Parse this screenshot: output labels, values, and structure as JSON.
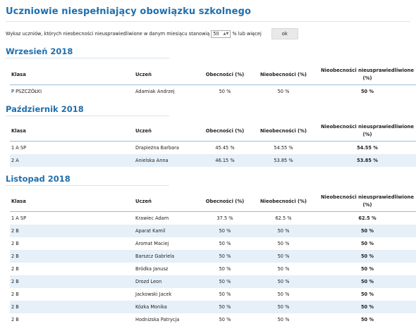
{
  "page": {
    "title": "Uczniowie niespełniający obowiązku szkolnego"
  },
  "filter": {
    "label_before": "Wykaz uczniów, których nieobecności nieusprawiedliwione w danym miesiącu stanowią",
    "value": "50",
    "label_after": "% lub więcej",
    "ok_label": "ok"
  },
  "columns": {
    "klasa": "Klasa",
    "uczen": "Uczeń",
    "obecnosci": "Obecności (%)",
    "nieobecnosci": "Nieobecności (%)",
    "nieusprawiedliwione": "Nieobecności nieusprawiedliwione (%)"
  },
  "sections": [
    {
      "month": "Wrzesień 2018",
      "rows": [
        {
          "klasa": "P PSZCZÓŁKI",
          "uczen": "Adamiak Andrzej",
          "obecnosci": "50 %",
          "nieobecnosci": "50 %",
          "nieusprawiedliwione": "50 %"
        }
      ]
    },
    {
      "month": "Październik 2018",
      "rows": [
        {
          "klasa": "1 A SP",
          "uczen": "Drapieżna Barbara",
          "obecnosci": "45.45 %",
          "nieobecnosci": "54.55 %",
          "nieusprawiedliwione": "54.55 %"
        },
        {
          "klasa": "2 A",
          "uczen": "Anielska Anna",
          "obecnosci": "46.15 %",
          "nieobecnosci": "53.85 %",
          "nieusprawiedliwione": "53.85 %"
        }
      ]
    },
    {
      "month": "Listopad 2018",
      "rows": [
        {
          "klasa": "1 A SP",
          "uczen": "Krawiec Adam",
          "obecnosci": "37.5 %",
          "nieobecnosci": "62.5 %",
          "nieusprawiedliwione": "62.5 %"
        },
        {
          "klasa": "2 B",
          "uczen": "Aparat Kamil",
          "obecnosci": "50 %",
          "nieobecnosci": "50 %",
          "nieusprawiedliwione": "50 %"
        },
        {
          "klasa": "2 B",
          "uczen": "Aromat Maciej",
          "obecnosci": "50 %",
          "nieobecnosci": "50 %",
          "nieusprawiedliwione": "50 %"
        },
        {
          "klasa": "2 B",
          "uczen": "Barszcz Gabriela",
          "obecnosci": "50 %",
          "nieobecnosci": "50 %",
          "nieusprawiedliwione": "50 %"
        },
        {
          "klasa": "2 B",
          "uczen": "Bródka Janusz",
          "obecnosci": "50 %",
          "nieobecnosci": "50 %",
          "nieusprawiedliwione": "50 %"
        },
        {
          "klasa": "2 B",
          "uczen": "Drozd Leon",
          "obecnosci": "50 %",
          "nieobecnosci": "50 %",
          "nieusprawiedliwione": "50 %"
        },
        {
          "klasa": "2 B",
          "uczen": "Jackowski Jacek",
          "obecnosci": "50 %",
          "nieobecnosci": "50 %",
          "nieusprawiedliwione": "50 %"
        },
        {
          "klasa": "2 B",
          "uczen": "Kózka Monika",
          "obecnosci": "50 %",
          "nieobecnosci": "50 %",
          "nieusprawiedliwione": "50 %"
        },
        {
          "klasa": "2 B",
          "uczen": "Hodnizska Patrycja",
          "obecnosci": "50 %",
          "nieobecnosci": "50 %",
          "nieusprawiedliwione": "50 %"
        }
      ]
    }
  ]
}
